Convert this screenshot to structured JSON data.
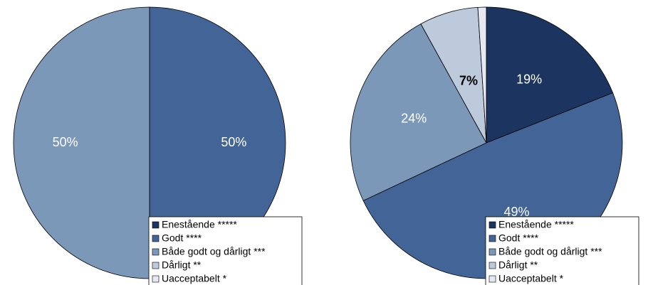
{
  "colors": {
    "enestaende": "#1c3560",
    "godt": "#436497",
    "baade": "#7b98b9",
    "daarligt": "#bccadc",
    "uacceptabelt": "#e6e8f3"
  },
  "legend": [
    {
      "label": "Enestående *****",
      "color": "#1c3560"
    },
    {
      "label": "Godt ****",
      "color": "#436497"
    },
    {
      "label": "Både godt og dårligt ***",
      "color": "#7b98b9"
    },
    {
      "label": "Dårligt **",
      "color": "#bccadc"
    },
    {
      "label": "Uacceptabelt *",
      "color": "#e6e8f3"
    }
  ],
  "chart_data": [
    {
      "type": "pie",
      "title": "",
      "start_angle_deg": 0,
      "direction": "clockwise",
      "legend_position": "bottom-right",
      "slices": [
        {
          "label": "Godt ****",
          "value": 50,
          "display": "50%",
          "color": "#436497",
          "label_color": "#ffffff",
          "label_weight": "normal"
        },
        {
          "label": "Både godt og dårligt ***",
          "value": 50,
          "display": "50%",
          "color": "#7b98b9",
          "label_color": "#ffffff",
          "label_weight": "normal"
        }
      ]
    },
    {
      "type": "pie",
      "title": "",
      "start_angle_deg": 0,
      "direction": "clockwise",
      "legend_position": "bottom-right",
      "slices": [
        {
          "label": "Enestående *****",
          "value": 19,
          "display": "19%",
          "color": "#1c3560",
          "label_color": "#ffffff",
          "label_weight": "normal"
        },
        {
          "label": "Godt ****",
          "value": 49,
          "display": "49%",
          "color": "#436497",
          "label_color": "#ffffff",
          "label_weight": "normal"
        },
        {
          "label": "Både godt og dårligt ***",
          "value": 24,
          "display": "24%",
          "color": "#7b98b9",
          "label_color": "#ffffff",
          "label_weight": "normal"
        },
        {
          "label": "Dårligt **",
          "value": 7,
          "display": "7%",
          "color": "#bccadc",
          "label_color": "#000000",
          "label_weight": "bold"
        },
        {
          "label": "Uacceptabelt *",
          "value": 1,
          "display": "",
          "color": "#e6e8f3",
          "label_color": "#000000",
          "label_weight": "normal"
        }
      ]
    }
  ]
}
